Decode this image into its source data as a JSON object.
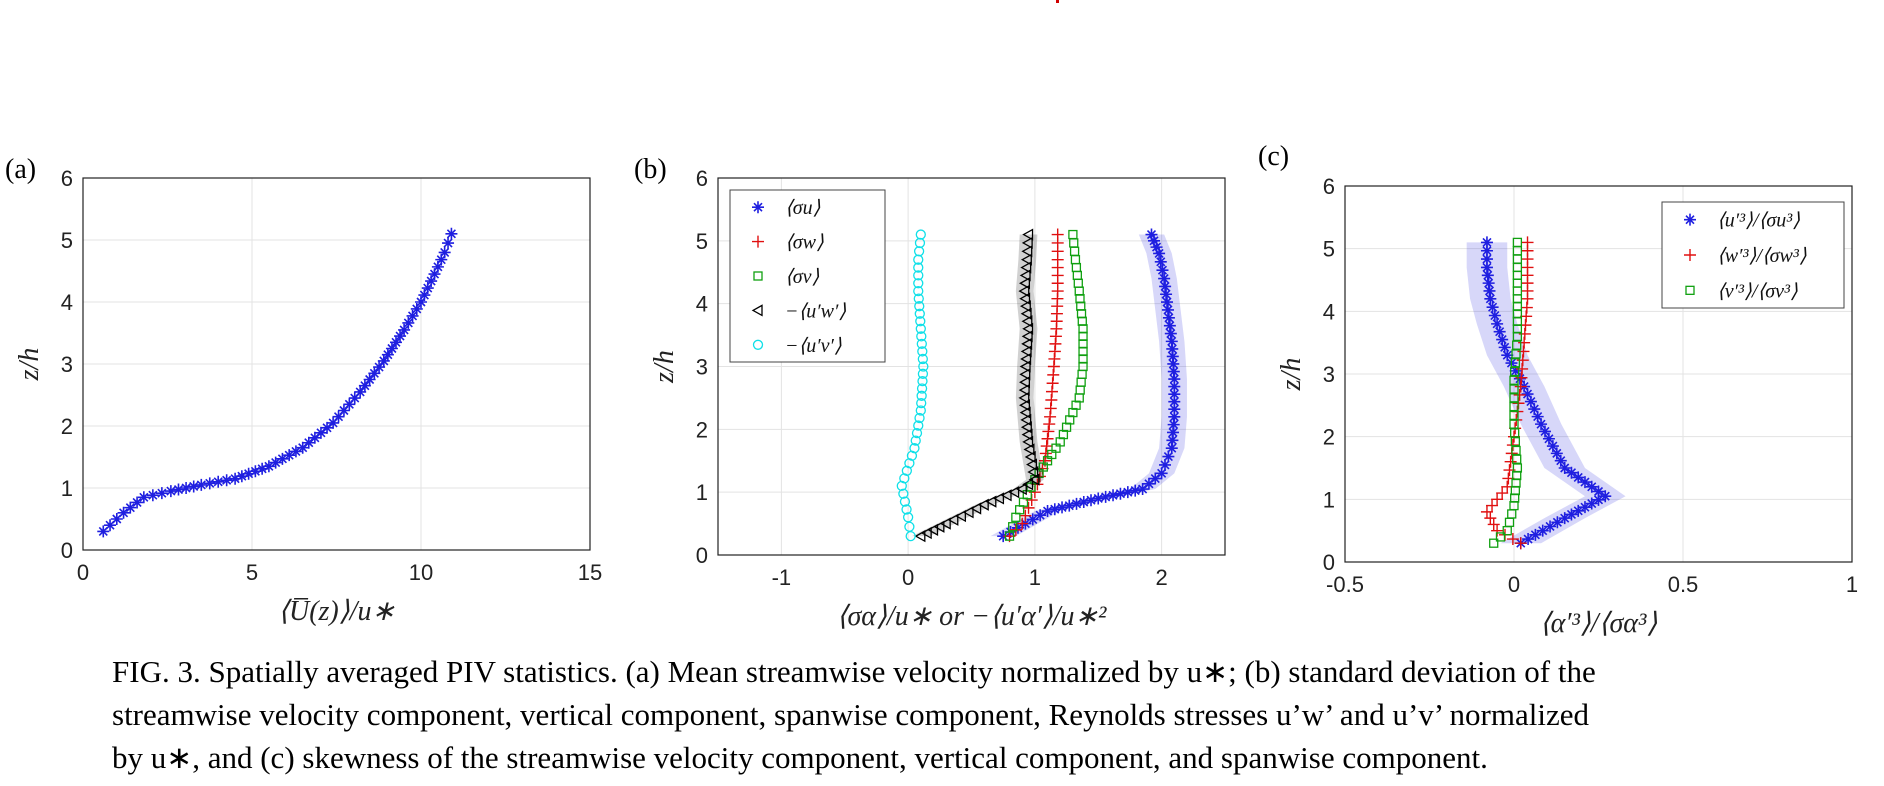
{
  "caption": {
    "lines": [
      "FIG. 3. Spatially averaged PIV statistics. (a) Mean streamwise velocity normalized by u∗; (b) standard deviation of the",
      "streamwise velocity component, vertical component, spanwise component, Reynolds stresses u’w’ and u’v’ normalized",
      "by u∗, and (c) skewness of the streamwise velocity component, vertical component, and spanwise component."
    ]
  },
  "chart_data": [
    {
      "type": "scatter",
      "panel_label": "(a)",
      "xlabel": "⟨U̅(z)⟩/u∗",
      "ylabel": "z/h",
      "xlim": [
        0,
        15
      ],
      "ylim": [
        0,
        6
      ],
      "xticks": [
        0,
        5,
        10,
        15
      ],
      "yticks": [
        0,
        1,
        2,
        3,
        4,
        5,
        6
      ],
      "xtick_labels": [
        "0",
        "5",
        "10",
        "15"
      ],
      "ytick_labels": [
        "0",
        "1",
        "2",
        "3",
        "4",
        "5",
        "6"
      ],
      "grid": true,
      "series": [
        {
          "color": "#1f1fe0",
          "marker": "star",
          "x": [
            0.6,
            1.2,
            1.8,
            2.6,
            3.5,
            4.5,
            5.5,
            6.5,
            7.4,
            8.2,
            8.9,
            9.5,
            10.0,
            10.4,
            10.7,
            10.9
          ],
          "y": [
            0.3,
            0.6,
            0.85,
            0.95,
            1.05,
            1.15,
            1.35,
            1.65,
            2.05,
            2.55,
            3.05,
            3.55,
            4.0,
            4.45,
            4.8,
            5.1
          ]
        }
      ]
    },
    {
      "type": "scatter",
      "panel_label": "(b)",
      "xlabel": "⟨σα⟩/u∗   or   −⟨u′α′⟩/u∗²",
      "ylabel": "z/h",
      "xlim": [
        -1.5,
        2.5
      ],
      "ylim": [
        0,
        6
      ],
      "xticks": [
        -1,
        0,
        1,
        2
      ],
      "yticks": [
        0,
        1,
        2,
        3,
        4,
        5,
        6
      ],
      "xtick_labels": [
        "-1",
        "0",
        "1",
        "2"
      ],
      "ytick_labels": [
        "0",
        "1",
        "2",
        "3",
        "4",
        "5",
        "6"
      ],
      "grid": true,
      "legend_position": "top-left",
      "series": [
        {
          "name": "⟨σu⟩",
          "color": "#1f1fe0",
          "marker": "star",
          "band": 0.1,
          "x": [
            0.75,
            1.1,
            1.5,
            1.85,
            2.0,
            2.08,
            2.1,
            2.1,
            2.08,
            2.05,
            2.02,
            1.98,
            1.92
          ],
          "y": [
            0.3,
            0.7,
            0.9,
            1.05,
            1.3,
            1.7,
            2.2,
            2.8,
            3.4,
            3.9,
            4.4,
            4.8,
            5.1
          ]
        },
        {
          "name": "⟨σw⟩",
          "color": "#e01010",
          "marker": "plus",
          "x": [
            0.8,
            0.9,
            1.0,
            1.08,
            1.12,
            1.15,
            1.17,
            1.18,
            1.18,
            1.18
          ],
          "y": [
            0.3,
            0.5,
            1.0,
            1.5,
            2.2,
            3.0,
            3.6,
            4.2,
            4.7,
            5.1
          ]
        },
        {
          "name": "⟨σv⟩",
          "color": "#10a010",
          "marker": "square",
          "x": [
            0.8,
            0.85,
            1.0,
            1.2,
            1.35,
            1.38,
            1.38,
            1.35,
            1.32,
            1.3
          ],
          "y": [
            0.3,
            0.6,
            1.2,
            1.8,
            2.5,
            3.0,
            3.6,
            4.2,
            4.7,
            5.1
          ]
        },
        {
          "name": "−⟨u′w′⟩",
          "color": "#000000",
          "marker": "triangle-left",
          "band": 0.07,
          "x": [
            0.1,
            0.3,
            0.6,
            0.9,
            1.0,
            0.95,
            0.92,
            0.93,
            0.95,
            0.92,
            0.94,
            0.95
          ],
          "y": [
            0.3,
            0.5,
            0.8,
            1.05,
            1.2,
            1.8,
            2.5,
            3.0,
            3.6,
            4.2,
            4.7,
            5.1
          ]
        },
        {
          "name": "−⟨u′v′⟩",
          "color": "#10e0e8",
          "marker": "circle",
          "x": [
            0.02,
            0.0,
            -0.05,
            0.05,
            0.1,
            0.12,
            0.1,
            0.08,
            0.08,
            0.1
          ],
          "y": [
            0.3,
            0.6,
            1.1,
            1.7,
            2.3,
            3.0,
            3.6,
            4.2,
            4.7,
            5.1
          ]
        }
      ]
    },
    {
      "type": "scatter",
      "panel_label": "(c)",
      "xlabel": "⟨α′³⟩/⟨σα³⟩",
      "ylabel": "z/h",
      "xlim": [
        -0.5,
        1
      ],
      "ylim": [
        0,
        6
      ],
      "xticks": [
        -0.5,
        0,
        0.5,
        1
      ],
      "yticks": [
        0,
        1,
        2,
        3,
        4,
        5,
        6
      ],
      "xtick_labels": [
        "-0.5",
        "0",
        "0.5",
        "1"
      ],
      "ytick_labels": [
        "0",
        "1",
        "2",
        "3",
        "4",
        "5",
        "6"
      ],
      "grid": true,
      "legend_position": "top-right",
      "series": [
        {
          "name": "⟨u′³⟩/⟨σu³⟩",
          "color": "#1f1fe0",
          "marker": "star",
          "band": 0.06,
          "x": [
            0.02,
            0.15,
            0.27,
            0.15,
            0.08,
            0.03,
            -0.02,
            -0.05,
            -0.07,
            -0.08,
            -0.08
          ],
          "y": [
            0.3,
            0.7,
            1.05,
            1.5,
            2.2,
            2.8,
            3.3,
            3.8,
            4.2,
            4.7,
            5.1
          ]
        },
        {
          "name": "⟨w′³⟩/⟨σw³⟩",
          "color": "#e01010",
          "marker": "plus",
          "x": [
            0.02,
            -0.05,
            -0.08,
            -0.02,
            0.0,
            0.02,
            0.03,
            0.04,
            0.04,
            0.04
          ],
          "y": [
            0.3,
            0.5,
            0.8,
            1.2,
            2.0,
            2.8,
            3.5,
            4.2,
            4.7,
            5.1
          ]
        },
        {
          "name": "⟨v′³⟩/⟨σv³⟩",
          "color": "#10a010",
          "marker": "square",
          "x": [
            -0.06,
            -0.02,
            0.0,
            0.01,
            0.0,
            0.0,
            0.01,
            0.01,
            0.01,
            0.01
          ],
          "y": [
            0.3,
            0.5,
            0.9,
            1.5,
            2.2,
            2.9,
            3.6,
            4.2,
            4.7,
            5.1
          ]
        }
      ]
    }
  ]
}
